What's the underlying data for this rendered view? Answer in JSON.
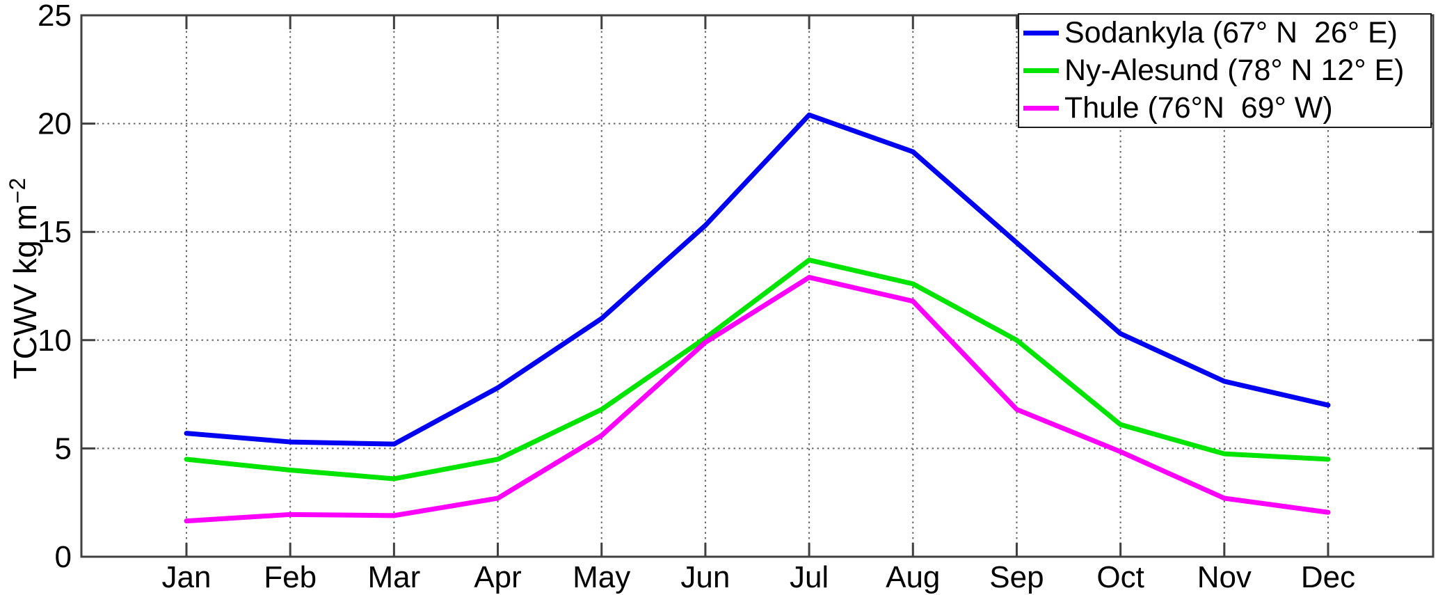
{
  "chart_data": {
    "type": "line",
    "title": "",
    "xlabel": "",
    "ylabel": "TCWV kg m^-2",
    "ylabel_parts": {
      "main": "TCWV kg m",
      "sup": "−2"
    },
    "categories": [
      "Jan",
      "Feb",
      "Mar",
      "Apr",
      "May",
      "Jun",
      "Jul",
      "Aug",
      "Sep",
      "Oct",
      "Nov",
      "Dec"
    ],
    "yticks": [
      0,
      5,
      10,
      15,
      20,
      25
    ],
    "ylim": [
      0,
      25
    ],
    "grid": "dotted",
    "legend_position": "top-right",
    "series": [
      {
        "name": "Sodankyla",
        "label": "Sodankyla (67° N  26° E)",
        "color": "#0000f2",
        "values": [
          5.7,
          5.3,
          5.2,
          7.8,
          11.0,
          15.3,
          20.4,
          18.7,
          14.5,
          10.3,
          8.1,
          7.0
        ]
      },
      {
        "name": "Ny-Alesund",
        "label": "Ny-Alesund (78° N 12° E)",
        "color": "#00e400",
        "values": [
          4.5,
          4.0,
          3.6,
          4.5,
          6.8,
          10.1,
          13.7,
          12.6,
          10.0,
          6.1,
          4.75,
          4.5
        ]
      },
      {
        "name": "Thule",
        "label": "Thule (76°N  69° W)",
        "color": "#ff00ff",
        "values": [
          1.65,
          1.95,
          1.9,
          2.7,
          5.6,
          9.9,
          12.9,
          11.8,
          6.8,
          4.85,
          2.7,
          2.05
        ]
      }
    ],
    "colors": {
      "axis": "#404040",
      "grid": "#666666",
      "text": "#000000"
    }
  }
}
